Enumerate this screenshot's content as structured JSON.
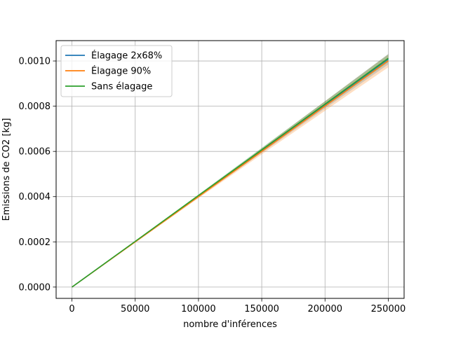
{
  "chart_data": {
    "type": "line",
    "title": "",
    "xlabel": "nombre d'inférences",
    "ylabel": "Emissions de CO2 [kg]",
    "xlim": [
      -12500,
      262500
    ],
    "ylim": [
      -5e-05,
      0.00109
    ],
    "xticks": [
      0,
      50000,
      100000,
      150000,
      200000,
      250000
    ],
    "xtick_labels": [
      "0",
      "50000",
      "100000",
      "150000",
      "200000",
      "250000"
    ],
    "yticks": [
      0.0,
      0.0002,
      0.0004,
      0.0006,
      0.0008,
      0.001
    ],
    "ytick_labels": [
      "0.0000",
      "0.0002",
      "0.0004",
      "0.0006",
      "0.0008",
      "0.0010"
    ],
    "grid": true,
    "legend_position": "top-left",
    "x": [
      0,
      50000,
      100000,
      150000,
      200000,
      250000
    ],
    "series": [
      {
        "name": "Élagage 2x68%",
        "color": "#1f77b4",
        "values": [
          0.0,
          0.000201,
          0.000402,
          0.000604,
          0.000806,
          0.001008
        ],
        "band_lower": [
          0.0,
          0.000199,
          0.000397,
          0.000594,
          0.00079,
          0.000985
        ],
        "band_upper": [
          0.0,
          0.000203,
          0.000408,
          0.000614,
          0.000822,
          0.001031
        ]
      },
      {
        "name": "Élagage 90%",
        "color": "#ff7f0e",
        "values": [
          0.0,
          0.0002,
          0.0004,
          0.0006,
          0.000801,
          0.001001
        ],
        "band_lower": [
          0.0,
          0.000197,
          0.000393,
          0.000587,
          0.00078,
          0.000972
        ],
        "band_upper": [
          0.0,
          0.000203,
          0.000407,
          0.000613,
          0.000822,
          0.00103
        ]
      },
      {
        "name": "Sans élagage",
        "color": "#2ca02c",
        "values": [
          0.0,
          0.000202,
          0.000405,
          0.000607,
          0.000809,
          0.001012
        ],
        "band_lower": [
          0.0,
          0.0002,
          0.0004,
          0.000598,
          0.000797,
          0.000995
        ],
        "band_upper": [
          0.0,
          0.000204,
          0.00041,
          0.000616,
          0.000822,
          0.001029
        ]
      }
    ]
  }
}
